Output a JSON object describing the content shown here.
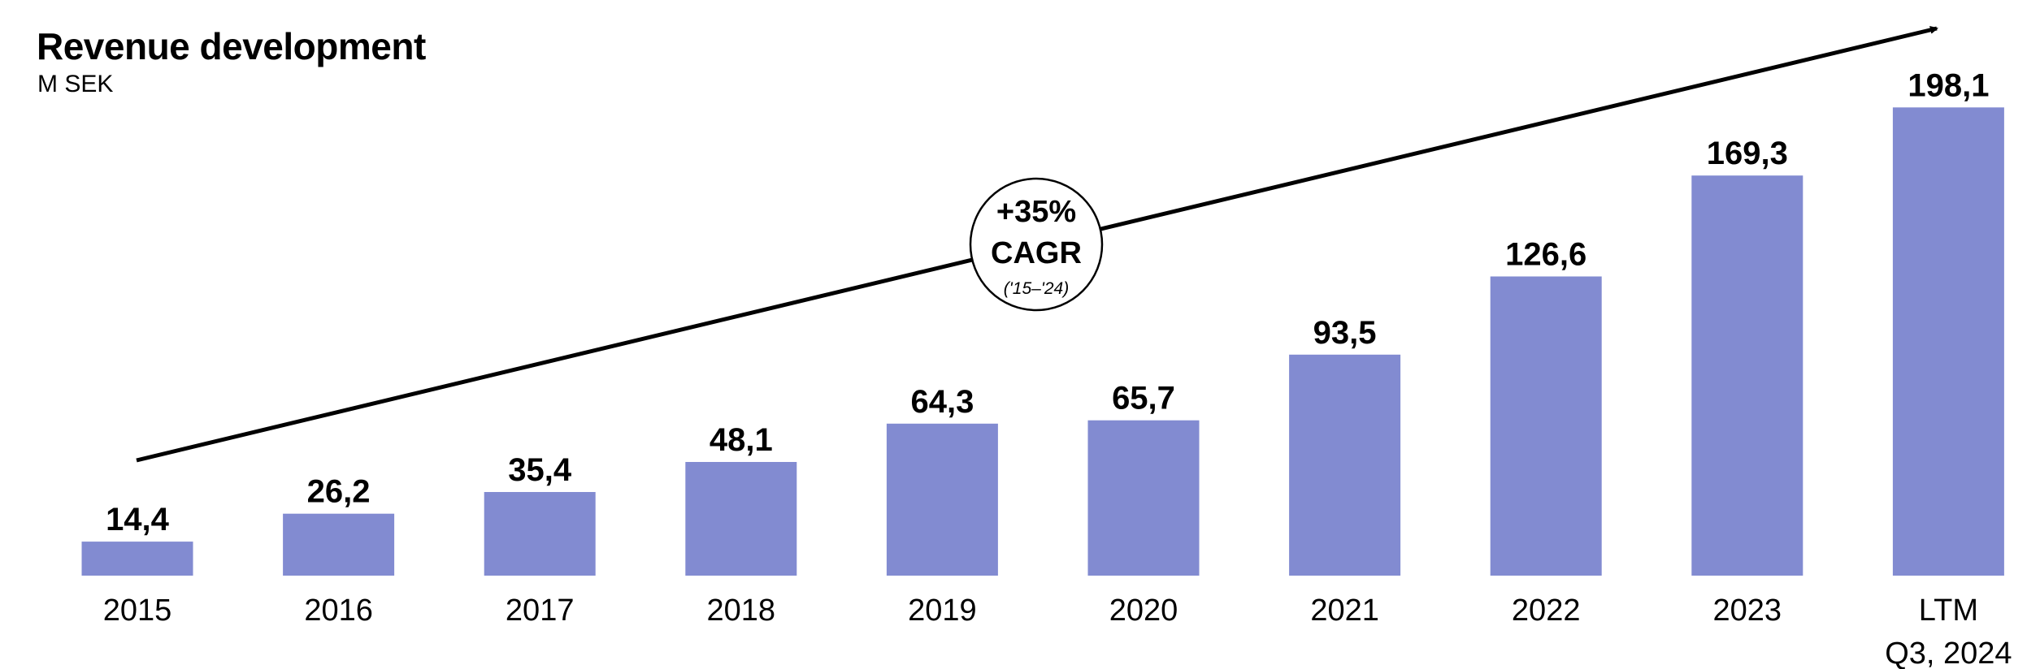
{
  "chart_data": {
    "type": "bar",
    "title": "Revenue development",
    "subtitle": "M SEK",
    "categories": [
      "2015",
      "2016",
      "2017",
      "2018",
      "2019",
      "2020",
      "2021",
      "2022",
      "2023",
      "LTM Q3, 2024"
    ],
    "category_lines": [
      [
        "2015"
      ],
      [
        "2016"
      ],
      [
        "2017"
      ],
      [
        "2018"
      ],
      [
        "2019"
      ],
      [
        "2020"
      ],
      [
        "2021"
      ],
      [
        "2022"
      ],
      [
        "2023"
      ],
      [
        "LTM",
        "Q3, 2024"
      ]
    ],
    "values": [
      14.4,
      26.2,
      35.4,
      48.1,
      64.3,
      65.7,
      93.5,
      126.6,
      169.3,
      198.1
    ],
    "value_labels": [
      "14,4",
      "26,2",
      "35,4",
      "48,1",
      "64,3",
      "65,7",
      "93,5",
      "126,6",
      "169,3",
      "198,1"
    ],
    "ylim": [
      0,
      200
    ],
    "bar_color": "#828bd1",
    "annotation": {
      "line1": "+35%",
      "line2": "CAGR",
      "line3": "('15–'24)"
    }
  }
}
